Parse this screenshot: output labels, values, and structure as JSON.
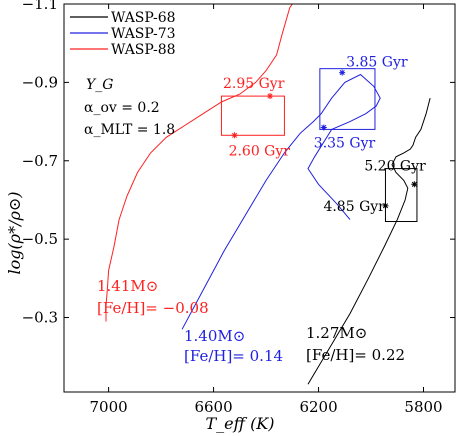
{
  "chart_data": {
    "type": "line",
    "title": "",
    "xlabel": "T_eff (K)",
    "ylabel": "log(ρ*/ρ⊙)",
    "xlim": [
      7170,
      5680
    ],
    "ylim": [
      -0.11,
      -1.1
    ],
    "x_reversed": true,
    "y_reversed": true,
    "x_ticks": [
      7000,
      6600,
      6200,
      5800
    ],
    "x_tick_labels": [
      "7000",
      "6600",
      "6200",
      "5800"
    ],
    "y_ticks": [
      -1.1,
      -0.9,
      -0.7,
      -0.5,
      -0.3
    ],
    "y_tick_labels": [
      "−1.1",
      "−0.9",
      "−0.7",
      "−0.5",
      "−0.3"
    ],
    "grid": false,
    "legend_position": "top-left",
    "annotations": {
      "model_label": "Y_G",
      "alpha_ov": "α_ov = 0.2",
      "alpha_mlt": "α_MLT = 1.8"
    },
    "series": [
      {
        "name": "WASP-68",
        "color": "#000000",
        "mass_label": "1.27M⊙",
        "feh_label": "[Fe/H]= 0.22",
        "x": [
          6240,
          6160,
          6080,
          6010,
          5950,
          5900,
          5870,
          5860,
          5875,
          5905,
          5920,
          5905,
          5875,
          5850,
          5840,
          5830,
          5810,
          5790,
          5775
        ],
        "y": [
          -0.13,
          -0.22,
          -0.31,
          -0.4,
          -0.48,
          -0.55,
          -0.6,
          -0.63,
          -0.65,
          -0.67,
          -0.69,
          -0.71,
          -0.72,
          -0.73,
          -0.74,
          -0.76,
          -0.78,
          -0.82,
          -0.86
        ]
      },
      {
        "name": "WASP-73",
        "color": "#2020e0",
        "mass_label": "1.40M⊙",
        "feh_label": "[Fe/H]= 0.14",
        "x": [
          6720,
          6640,
          6560,
          6480,
          6400,
          6330,
          6270,
          6220,
          6190,
          6150,
          6100,
          6040,
          5990,
          5965,
          5980,
          6020,
          6080,
          6150,
          6215,
          6240,
          6200,
          6130,
          6080
        ],
        "y": [
          -0.27,
          -0.37,
          -0.47,
          -0.56,
          -0.65,
          -0.72,
          -0.77,
          -0.8,
          -0.82,
          -0.86,
          -0.9,
          -0.92,
          -0.89,
          -0.86,
          -0.84,
          -0.82,
          -0.8,
          -0.78,
          -0.71,
          -0.68,
          -0.64,
          -0.59,
          -0.55
        ]
      },
      {
        "name": "WASP-88",
        "color": "#ff2020",
        "mass_label": "1.41M⊙",
        "feh_label": "[Fe/H]= −0.08",
        "x": [
          7010,
          7010,
          7005,
          7000,
          6980,
          6960,
          6930,
          6890,
          6840,
          6780,
          6710,
          6640,
          6570,
          6500,
          6440,
          6400,
          6360,
          6340,
          6310,
          6270,
          6230,
          6200
        ],
        "y": [
          -0.29,
          -0.33,
          -0.37,
          -0.42,
          -0.48,
          -0.55,
          -0.61,
          -0.67,
          -0.72,
          -0.76,
          -0.79,
          -0.82,
          -0.85,
          -0.87,
          -0.9,
          -0.93,
          -0.97,
          -1.02,
          -1.09,
          -1.13,
          -1.16,
          -1.19
        ]
      }
    ],
    "age_markers": [
      {
        "series": "WASP-88",
        "label": "2.95 Gyr",
        "x": 6385,
        "y": -0.865
      },
      {
        "series": "WASP-88",
        "label": "2.60 Gyr",
        "x": 6520,
        "y": -0.765
      },
      {
        "series": "WASP-73",
        "label": "3.85 Gyr",
        "x": 6110,
        "y": -0.925
      },
      {
        "series": "WASP-73",
        "label": "3.35 Gyr",
        "x": 6180,
        "y": -0.785
      },
      {
        "series": "WASP-68",
        "label": "5.20 Gyr",
        "x": 5835,
        "y": -0.64
      },
      {
        "series": "WASP-68",
        "label": "4.85 Gyr",
        "x": 5945,
        "y": -0.585
      }
    ],
    "observation_boxes": [
      {
        "series": "WASP-88",
        "x": [
          6330,
          6570
        ],
        "y": [
          -0.765,
          -0.865
        ]
      },
      {
        "series": "WASP-73",
        "x": [
          5985,
          6195
        ],
        "y": [
          -0.78,
          -0.935
        ]
      },
      {
        "series": "WASP-68",
        "x": [
          5825,
          5945
        ],
        "y": [
          -0.545,
          -0.68
        ]
      }
    ]
  }
}
